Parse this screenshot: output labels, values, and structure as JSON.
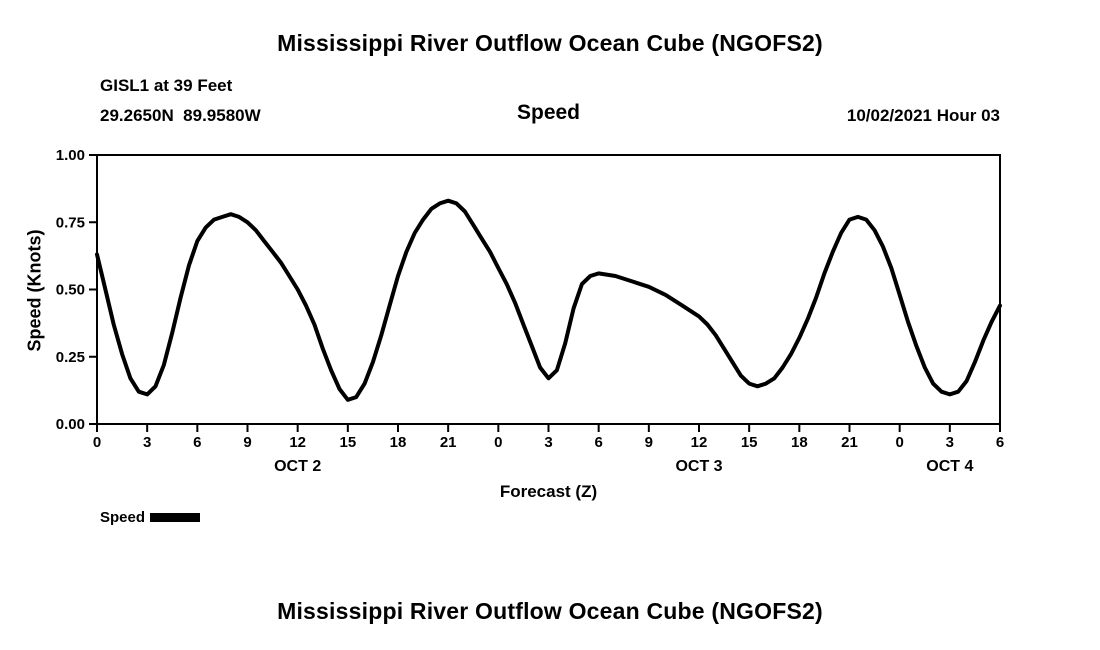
{
  "page": {
    "title_top": "Mississippi River Outflow Ocean Cube (NGOFS2)",
    "title_bottom": "Mississippi River Outflow Ocean Cube (NGOFS2)",
    "station_line1": "GISL1 at 39 Feet",
    "station_line2": "29.2650N  89.9580W",
    "plot_heading": "Speed",
    "datetime_label": "10/02/2021 Hour 03",
    "colors": {
      "line": "#000000",
      "text": "#000000",
      "background": "#ffffff"
    }
  },
  "chart_data": {
    "type": "line",
    "title": "Speed",
    "xlabel": "Forecast (Z)",
    "ylabel": "Speed (Knots)",
    "xlim": [
      0,
      54
    ],
    "ylim": [
      0.0,
      1.0
    ],
    "grid": false,
    "legend_position": "bottom-left",
    "x_ticks": [
      0,
      3,
      6,
      9,
      12,
      15,
      18,
      21,
      24,
      27,
      30,
      33,
      36,
      39,
      42,
      45,
      48,
      51,
      54
    ],
    "x_tick_labels": [
      "0",
      "3",
      "6",
      "9",
      "12",
      "15",
      "18",
      "21",
      "0",
      "3",
      "6",
      "9",
      "12",
      "15",
      "18",
      "21",
      "0",
      "3",
      "6"
    ],
    "y_ticks": [
      0.0,
      0.25,
      0.5,
      0.75,
      1.0
    ],
    "y_tick_labels": [
      "0.00",
      "0.25",
      "0.50",
      "0.75",
      "1.00"
    ],
    "date_labels": [
      {
        "label": "OCT 2",
        "hour": 12
      },
      {
        "label": "OCT 3",
        "hour": 36
      },
      {
        "label": "OCT 4",
        "hour": 51
      }
    ],
    "legend": [
      {
        "name": "Speed",
        "color": "#000000"
      }
    ],
    "series": [
      {
        "name": "Speed",
        "units": "Knots",
        "points": [
          [
            0,
            0.63
          ],
          [
            0.5,
            0.5
          ],
          [
            1,
            0.37
          ],
          [
            1.5,
            0.26
          ],
          [
            2,
            0.17
          ],
          [
            2.5,
            0.12
          ],
          [
            3,
            0.11
          ],
          [
            3.5,
            0.14
          ],
          [
            4,
            0.22
          ],
          [
            4.5,
            0.34
          ],
          [
            5,
            0.47
          ],
          [
            5.5,
            0.59
          ],
          [
            6,
            0.68
          ],
          [
            6.5,
            0.73
          ],
          [
            7,
            0.76
          ],
          [
            7.5,
            0.77
          ],
          [
            8,
            0.78
          ],
          [
            8.5,
            0.77
          ],
          [
            9,
            0.75
          ],
          [
            9.5,
            0.72
          ],
          [
            10,
            0.68
          ],
          [
            10.5,
            0.64
          ],
          [
            11,
            0.6
          ],
          [
            11.5,
            0.55
          ],
          [
            12,
            0.5
          ],
          [
            12.5,
            0.44
          ],
          [
            13,
            0.37
          ],
          [
            13.5,
            0.28
          ],
          [
            14,
            0.2
          ],
          [
            14.5,
            0.13
          ],
          [
            15,
            0.09
          ],
          [
            15.5,
            0.1
          ],
          [
            16,
            0.15
          ],
          [
            16.5,
            0.23
          ],
          [
            17,
            0.33
          ],
          [
            17.5,
            0.44
          ],
          [
            18,
            0.55
          ],
          [
            18.5,
            0.64
          ],
          [
            19,
            0.71
          ],
          [
            19.5,
            0.76
          ],
          [
            20,
            0.8
          ],
          [
            20.5,
            0.82
          ],
          [
            21,
            0.83
          ],
          [
            21.5,
            0.82
          ],
          [
            22,
            0.79
          ],
          [
            22.5,
            0.74
          ],
          [
            23,
            0.69
          ],
          [
            23.5,
            0.64
          ],
          [
            24,
            0.58
          ],
          [
            24.5,
            0.52
          ],
          [
            25,
            0.45
          ],
          [
            25.5,
            0.37
          ],
          [
            26,
            0.29
          ],
          [
            26.5,
            0.21
          ],
          [
            27,
            0.17
          ],
          [
            27.5,
            0.2
          ],
          [
            28,
            0.3
          ],
          [
            28.5,
            0.43
          ],
          [
            29,
            0.52
          ],
          [
            29.5,
            0.55
          ],
          [
            30,
            0.56
          ],
          [
            31,
            0.55
          ],
          [
            32,
            0.53
          ],
          [
            33,
            0.51
          ],
          [
            34,
            0.48
          ],
          [
            35,
            0.44
          ],
          [
            36,
            0.4
          ],
          [
            36.5,
            0.37
          ],
          [
            37,
            0.33
          ],
          [
            37.5,
            0.28
          ],
          [
            38,
            0.23
          ],
          [
            38.5,
            0.18
          ],
          [
            39,
            0.15
          ],
          [
            39.5,
            0.14
          ],
          [
            40,
            0.15
          ],
          [
            40.5,
            0.17
          ],
          [
            41,
            0.21
          ],
          [
            41.5,
            0.26
          ],
          [
            42,
            0.32
          ],
          [
            42.5,
            0.39
          ],
          [
            43,
            0.47
          ],
          [
            43.5,
            0.56
          ],
          [
            44,
            0.64
          ],
          [
            44.5,
            0.71
          ],
          [
            45,
            0.76
          ],
          [
            45.5,
            0.77
          ],
          [
            46,
            0.76
          ],
          [
            46.5,
            0.72
          ],
          [
            47,
            0.66
          ],
          [
            47.5,
            0.58
          ],
          [
            48,
            0.48
          ],
          [
            48.5,
            0.38
          ],
          [
            49,
            0.29
          ],
          [
            49.5,
            0.21
          ],
          [
            50,
            0.15
          ],
          [
            50.5,
            0.12
          ],
          [
            51,
            0.11
          ],
          [
            51.5,
            0.12
          ],
          [
            52,
            0.16
          ],
          [
            52.5,
            0.23
          ],
          [
            53,
            0.31
          ],
          [
            53.5,
            0.38
          ],
          [
            54,
            0.44
          ]
        ]
      }
    ]
  }
}
